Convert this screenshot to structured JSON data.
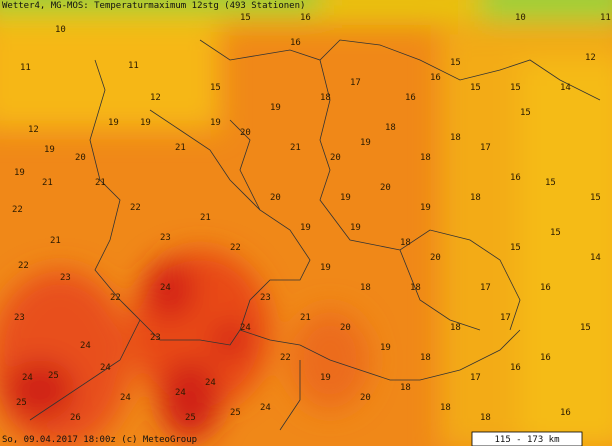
{
  "header": {
    "title": "Wetter4, MG-MOS: Temperaturmaximum 12stg (493 Stationen)"
  },
  "footer": {
    "timestamp": "So, 09.04.2017 18:00z (c) MeteoGroup",
    "scale": "115 - 173 km"
  },
  "stations": [
    10,
    11,
    11,
    12,
    19,
    19,
    21,
    22,
    21,
    22,
    23,
    23,
    24,
    25,
    25,
    26,
    24,
    22,
    24,
    23,
    24,
    25,
    24,
    24,
    23,
    22,
    21,
    23,
    22,
    21,
    20,
    19,
    19,
    21,
    19,
    20,
    19,
    21,
    18,
    20,
    19,
    18,
    18,
    18,
    17,
    16,
    15,
    15,
    15,
    14,
    12,
    11,
    10,
    15,
    16,
    17,
    16,
    15,
    16,
    15,
    12,
    19,
    20,
    19,
    18,
    16,
    15,
    15,
    15,
    15,
    17,
    20,
    18,
    19,
    19,
    20,
    19,
    18,
    18,
    18,
    17,
    16,
    14,
    15,
    16,
    16,
    17,
    18,
    19,
    20,
    21,
    22,
    19,
    20,
    18,
    18,
    18,
    16,
    24,
    25,
    24,
    24
  ]
}
